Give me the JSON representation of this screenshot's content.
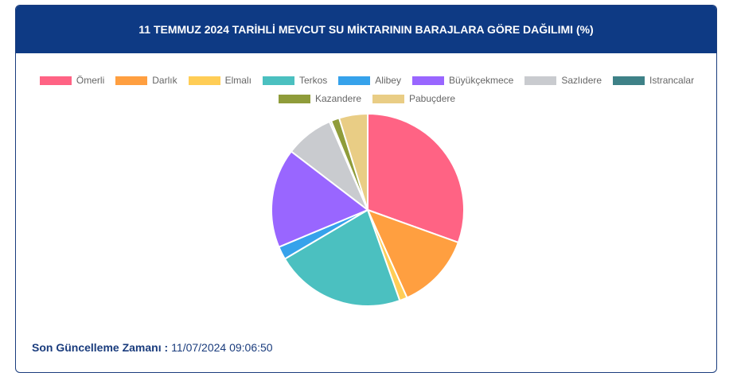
{
  "chart_data": {
    "type": "pie",
    "title": "11 TEMMUZ 2024 TARİHLİ MEVCUT SU MİKTARININ BARAJLARA GÖRE DAĞILIMI (%)",
    "categories": [
      "Ömerli",
      "Darlık",
      "Elmalı",
      "Terkos",
      "Alibey",
      "Büyükçekmece",
      "Sazlıdere",
      "Istrancalar",
      "Kazandere",
      "Pabuçdere"
    ],
    "values": [
      30.5,
      12.8,
      1.3,
      21.9,
      2.2,
      16.7,
      8.1,
      0.3,
      1.4,
      4.8
    ],
    "colors": [
      "#ff6384",
      "#ff9f40",
      "#ffcd56",
      "#4bc0c0",
      "#36a2eb",
      "#9966ff",
      "#c9cbcf",
      "#3e8187",
      "#8f9c3a",
      "#e9cd85"
    ],
    "legend": "top"
  },
  "footer": {
    "label": "Son Güncelleme Zamanı :",
    "value": "11/07/2024 09:06:50"
  }
}
